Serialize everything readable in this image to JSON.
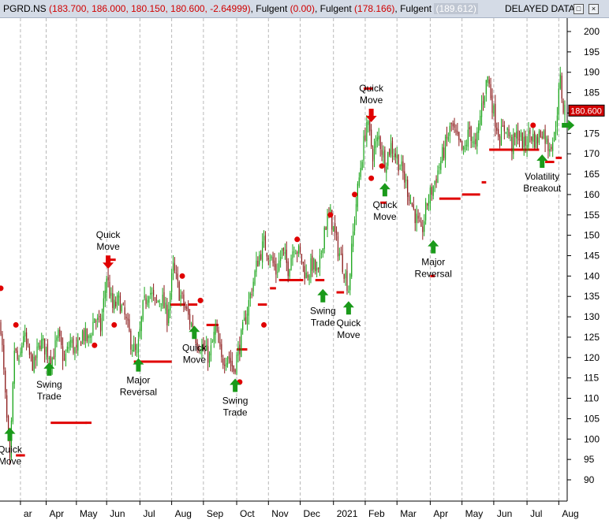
{
  "header": {
    "symbol": "PGRD.NS",
    "ohlc": "(183.700, 186.000, 180.150, 180.600, -2.64999)",
    "ind1_name": "Fulgent",
    "ind1_value": "(0.00)",
    "ind2_name": "Fulgent",
    "ind2_value": "(178.166)",
    "ind3_name": "Fulgent",
    "ind3_value": "(189.612)",
    "status": "DELAYED DATA",
    "btn_restore": "□",
    "btn_close": "×"
  },
  "chart_data": {
    "type": "candlestick",
    "title": "",
    "ylim": [
      84,
      204
    ],
    "y_ticks": [
      90,
      95,
      100,
      105,
      110,
      115,
      120,
      125,
      130,
      135,
      140,
      145,
      150,
      155,
      160,
      165,
      170,
      175,
      180,
      185,
      190,
      195,
      200
    ],
    "grid": "vertical dashed at months",
    "last_price": "180.600",
    "months": [
      {
        "label": "ar",
        "index": 13
      },
      {
        "label": "Apr",
        "index": 30
      },
      {
        "label": "May",
        "index": 50
      },
      {
        "label": "Jun",
        "index": 70
      },
      {
        "label": "Jul",
        "index": 92
      },
      {
        "label": "Aug",
        "index": 113
      },
      {
        "label": "Sep",
        "index": 134
      },
      {
        "label": "Oct",
        "index": 156
      },
      {
        "label": "Nov",
        "index": 177
      },
      {
        "label": "Dec",
        "index": 198
      },
      {
        "label": "2021",
        "index": 220
      },
      {
        "label": "Feb",
        "index": 241
      },
      {
        "label": "Mar",
        "index": 262
      },
      {
        "label": "Apr",
        "index": 284
      },
      {
        "label": "May",
        "index": 305
      },
      {
        "label": "Jun",
        "index": 326
      },
      {
        "label": "Jul",
        "index": 348
      },
      {
        "label": "Aug",
        "index": 369
      }
    ],
    "price_path": [
      [
        0,
        128
      ],
      [
        3,
        110
      ],
      [
        6,
        93
      ],
      [
        9,
        122
      ],
      [
        12,
        118
      ],
      [
        15,
        126
      ],
      [
        18,
        121
      ],
      [
        22,
        118
      ],
      [
        26,
        124
      ],
      [
        30,
        122
      ],
      [
        34,
        120
      ],
      [
        38,
        125
      ],
      [
        42,
        119
      ],
      [
        46,
        124
      ],
      [
        50,
        121
      ],
      [
        54,
        126
      ],
      [
        58,
        124
      ],
      [
        62,
        130
      ],
      [
        66,
        127
      ],
      [
        70,
        140
      ],
      [
        74,
        132
      ],
      [
        78,
        134
      ],
      [
        82,
        130
      ],
      [
        86,
        124
      ],
      [
        90,
        120
      ],
      [
        94,
        132
      ],
      [
        98,
        137
      ],
      [
        102,
        133
      ],
      [
        106,
        135
      ],
      [
        110,
        130
      ],
      [
        114,
        142
      ],
      [
        118,
        136
      ],
      [
        122,
        132
      ],
      [
        126,
        128
      ],
      [
        130,
        124
      ],
      [
        134,
        122
      ],
      [
        138,
        120
      ],
      [
        142,
        127
      ],
      [
        146,
        119
      ],
      [
        150,
        121
      ],
      [
        154,
        117
      ],
      [
        158,
        123
      ],
      [
        162,
        130
      ],
      [
        166,
        137
      ],
      [
        170,
        144
      ],
      [
        174,
        148
      ],
      [
        178,
        145
      ],
      [
        182,
        141
      ],
      [
        186,
        146
      ],
      [
        190,
        142
      ],
      [
        194,
        148
      ],
      [
        198,
        145
      ],
      [
        202,
        140
      ],
      [
        206,
        143
      ],
      [
        210,
        140
      ],
      [
        214,
        152
      ],
      [
        218,
        155
      ],
      [
        222,
        148
      ],
      [
        226,
        143
      ],
      [
        230,
        137
      ],
      [
        234,
        155
      ],
      [
        238,
        167
      ],
      [
        242,
        178
      ],
      [
        246,
        170
      ],
      [
        250,
        174
      ],
      [
        254,
        168
      ],
      [
        258,
        172
      ],
      [
        262,
        169
      ],
      [
        266,
        165
      ],
      [
        270,
        160
      ],
      [
        274,
        155
      ],
      [
        278,
        150
      ],
      [
        282,
        158
      ],
      [
        286,
        162
      ],
      [
        290,
        167
      ],
      [
        294,
        172
      ],
      [
        298,
        177
      ],
      [
        302,
        173
      ],
      [
        306,
        170
      ],
      [
        310,
        176
      ],
      [
        314,
        171
      ],
      [
        318,
        182
      ],
      [
        322,
        189
      ],
      [
        326,
        180
      ],
      [
        330,
        174
      ],
      [
        334,
        177
      ],
      [
        338,
        172
      ],
      [
        342,
        175
      ],
      [
        346,
        172
      ],
      [
        350,
        175
      ],
      [
        354,
        173
      ],
      [
        358,
        176
      ],
      [
        362,
        172
      ],
      [
        366,
        174
      ],
      [
        370,
        188
      ],
      [
        372,
        181
      ]
    ],
    "support_levels": [
      {
        "x0": 10,
        "x1": 16,
        "y": 96
      },
      {
        "x0": 33,
        "x1": 57,
        "y": 104
      },
      {
        "x0": 56,
        "x1": 60,
        "y": 104
      },
      {
        "x0": 71,
        "x1": 76,
        "y": 144
      },
      {
        "x0": 88,
        "x1": 113,
        "y": 119
      },
      {
        "x0": 112,
        "x1": 122,
        "y": 133
      },
      {
        "x0": 124,
        "x1": 130,
        "y": 133
      },
      {
        "x0": 136,
        "x1": 144,
        "y": 128
      },
      {
        "x0": 156,
        "x1": 163,
        "y": 122
      },
      {
        "x0": 170,
        "x1": 176,
        "y": 133
      },
      {
        "x0": 178,
        "x1": 182,
        "y": 137
      },
      {
        "x0": 184,
        "x1": 200,
        "y": 139
      },
      {
        "x0": 208,
        "x1": 214,
        "y": 139
      },
      {
        "x0": 222,
        "x1": 227,
        "y": 136
      },
      {
        "x0": 240,
        "x1": 246,
        "y": 186
      },
      {
        "x0": 251,
        "x1": 255,
        "y": 158
      },
      {
        "x0": 284,
        "x1": 287,
        "y": 140
      },
      {
        "x0": 290,
        "x1": 304,
        "y": 159
      },
      {
        "x0": 305,
        "x1": 317,
        "y": 160
      },
      {
        "x0": 318,
        "x1": 321,
        "y": 163
      },
      {
        "x0": 323,
        "x1": 356,
        "y": 171
      },
      {
        "x0": 360,
        "x1": 366,
        "y": 168
      },
      {
        "x0": 367,
        "x1": 371,
        "y": 169
      }
    ],
    "dots": [
      [
        0,
        137
      ],
      [
        10,
        128
      ],
      [
        62,
        123
      ],
      [
        75,
        128
      ],
      [
        120,
        140
      ],
      [
        132,
        134
      ],
      [
        158,
        114
      ],
      [
        174,
        128
      ],
      [
        196,
        149
      ],
      [
        218,
        155
      ],
      [
        234,
        160
      ],
      [
        245,
        164
      ],
      [
        252,
        167
      ],
      [
        352,
        177
      ]
    ],
    "signals": [
      {
        "index": 6,
        "dir": "up",
        "price": 104,
        "labels": [
          "Quick",
          "Move"
        ],
        "label_pos": "below"
      },
      {
        "index": 32,
        "dir": "up",
        "price": 120,
        "labels": [
          "Swing",
          "Trade"
        ],
        "label_pos": "below"
      },
      {
        "index": 71,
        "dir": "down",
        "price": 141,
        "labels": [
          "Quick",
          "Move"
        ],
        "label_pos": "above"
      },
      {
        "index": 91,
        "dir": "up",
        "price": 121,
        "labels": [
          "Major",
          "Reversal"
        ],
        "label_pos": "below"
      },
      {
        "index": 128,
        "dir": "up",
        "price": 129,
        "labels": [
          "Quick",
          "Move"
        ],
        "label_pos": "below"
      },
      {
        "index": 155,
        "dir": "up",
        "price": 116,
        "labels": [
          "Swing",
          "Trade"
        ],
        "label_pos": "below"
      },
      {
        "index": 213,
        "dir": "up",
        "price": 138,
        "labels": [
          "Swing",
          "Trade"
        ],
        "label_pos": "below"
      },
      {
        "index": 230,
        "dir": "up",
        "price": 135,
        "labels": [
          "Quick",
          "Move"
        ],
        "label_pos": "below"
      },
      {
        "index": 245,
        "dir": "down",
        "price": 177,
        "labels": [
          "Quick",
          "Move"
        ],
        "label_pos": "above"
      },
      {
        "index": 254,
        "dir": "up",
        "price": 164,
        "labels": [
          "Quick",
          "Move"
        ],
        "label_pos": "below"
      },
      {
        "index": 286,
        "dir": "up",
        "price": 150,
        "labels": [
          "Major",
          "Reversal"
        ],
        "label_pos": "below"
      },
      {
        "index": 358,
        "dir": "up",
        "price": 171,
        "labels": [
          "Volatility",
          "Breakout"
        ],
        "label_pos": "below"
      },
      {
        "index": 371,
        "dir": "right",
        "price": 177,
        "labels": [],
        "label_pos": "none"
      }
    ]
  }
}
